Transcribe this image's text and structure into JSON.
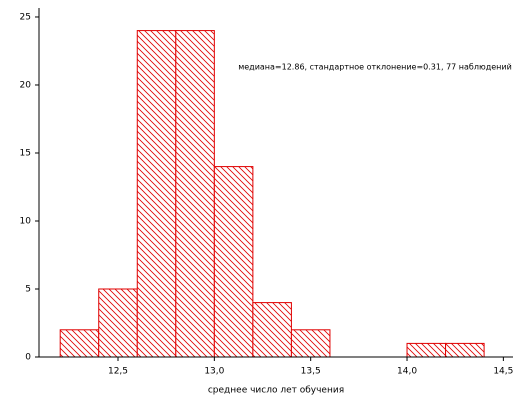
{
  "chart_data": {
    "type": "histogram",
    "x_label": "среднее число лет обучения",
    "annotation": "медиана=12.86, стандартное отклонение=0.31, 77 наблюдений",
    "bins": [
      12.2,
      12.4,
      12.6,
      12.8,
      13.0,
      13.2,
      13.4,
      13.6,
      13.8,
      14.0,
      14.2,
      14.4
    ],
    "values": [
      2,
      5,
      24,
      24,
      14,
      4,
      2,
      0,
      0,
      1,
      1
    ],
    "color": "#e00000",
    "xlim": [
      12.09,
      14.55
    ],
    "xticks": [
      {
        "value": 12.5,
        "label": "12,5"
      },
      {
        "value": 13.0,
        "label": "13,0"
      },
      {
        "value": 13.5,
        "label": "13,5"
      },
      {
        "value": 14.0,
        "label": "14,0"
      },
      {
        "value": 14.5,
        "label": "14,5"
      }
    ],
    "ylim": [
      0,
      25.66
    ],
    "yticks": [
      0,
      5,
      10,
      15,
      20,
      25
    ]
  }
}
